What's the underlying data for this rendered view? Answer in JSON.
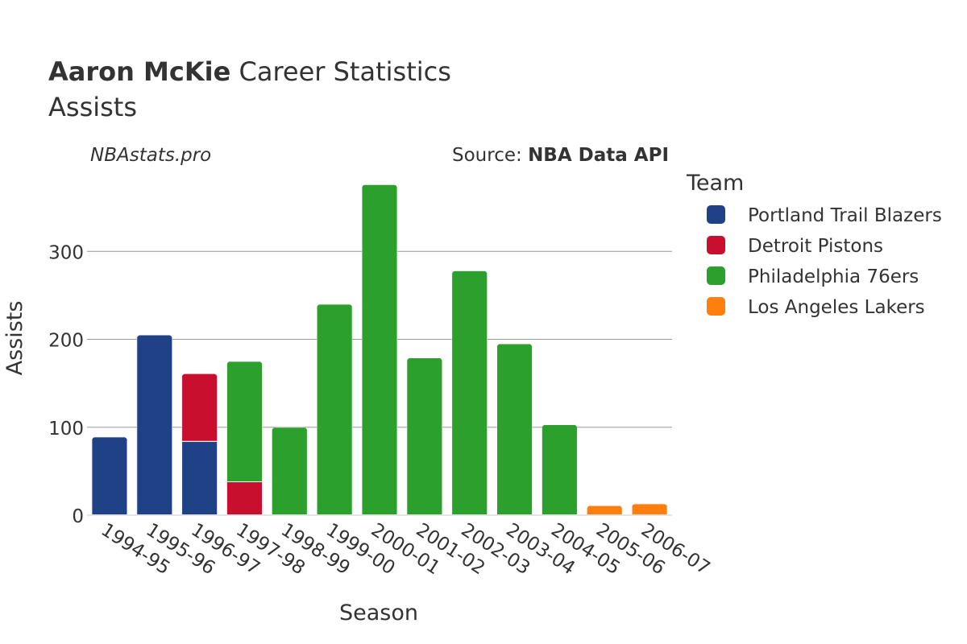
{
  "header": {
    "title_bold": "Aaron McKie",
    "title_rest": " Career Statistics",
    "subtitle": "Assists",
    "site": "NBAstats.pro",
    "source_prefix": "Source: ",
    "source_name": "NBA Data API"
  },
  "chart_data": {
    "type": "bar",
    "stacked": true,
    "xlabel": "Season",
    "ylabel": "Assists",
    "ylim": [
      0,
      390
    ],
    "yticks": [
      0,
      100,
      200,
      300
    ],
    "grid": true,
    "legend_title": "Team",
    "legend_position": "right",
    "categories": [
      "1994-95",
      "1995-96",
      "1996-97",
      "1997-98",
      "1998-99",
      "1999-00",
      "2000-01",
      "2001-02",
      "2002-03",
      "2003-04",
      "2004-05",
      "2005-06",
      "2006-07"
    ],
    "series": [
      {
        "name": "Portland Trail Blazers",
        "color": "#1f4287",
        "values": [
          89,
          205,
          84,
          0,
          0,
          0,
          0,
          0,
          0,
          0,
          0,
          0,
          0
        ]
      },
      {
        "name": "Detroit Pistons",
        "color": "#c8102e",
        "values": [
          0,
          0,
          77,
          38,
          0,
          0,
          0,
          0,
          0,
          0,
          0,
          0,
          0
        ]
      },
      {
        "name": "Philadelphia 76ers",
        "color": "#2ca02c",
        "values": [
          0,
          0,
          0,
          137,
          100,
          240,
          376,
          179,
          278,
          195,
          103,
          0,
          0
        ]
      },
      {
        "name": "Los Angeles Lakers",
        "color": "#ff7f0e",
        "values": [
          0,
          0,
          0,
          0,
          0,
          0,
          0,
          0,
          0,
          0,
          0,
          11,
          13
        ]
      }
    ]
  }
}
